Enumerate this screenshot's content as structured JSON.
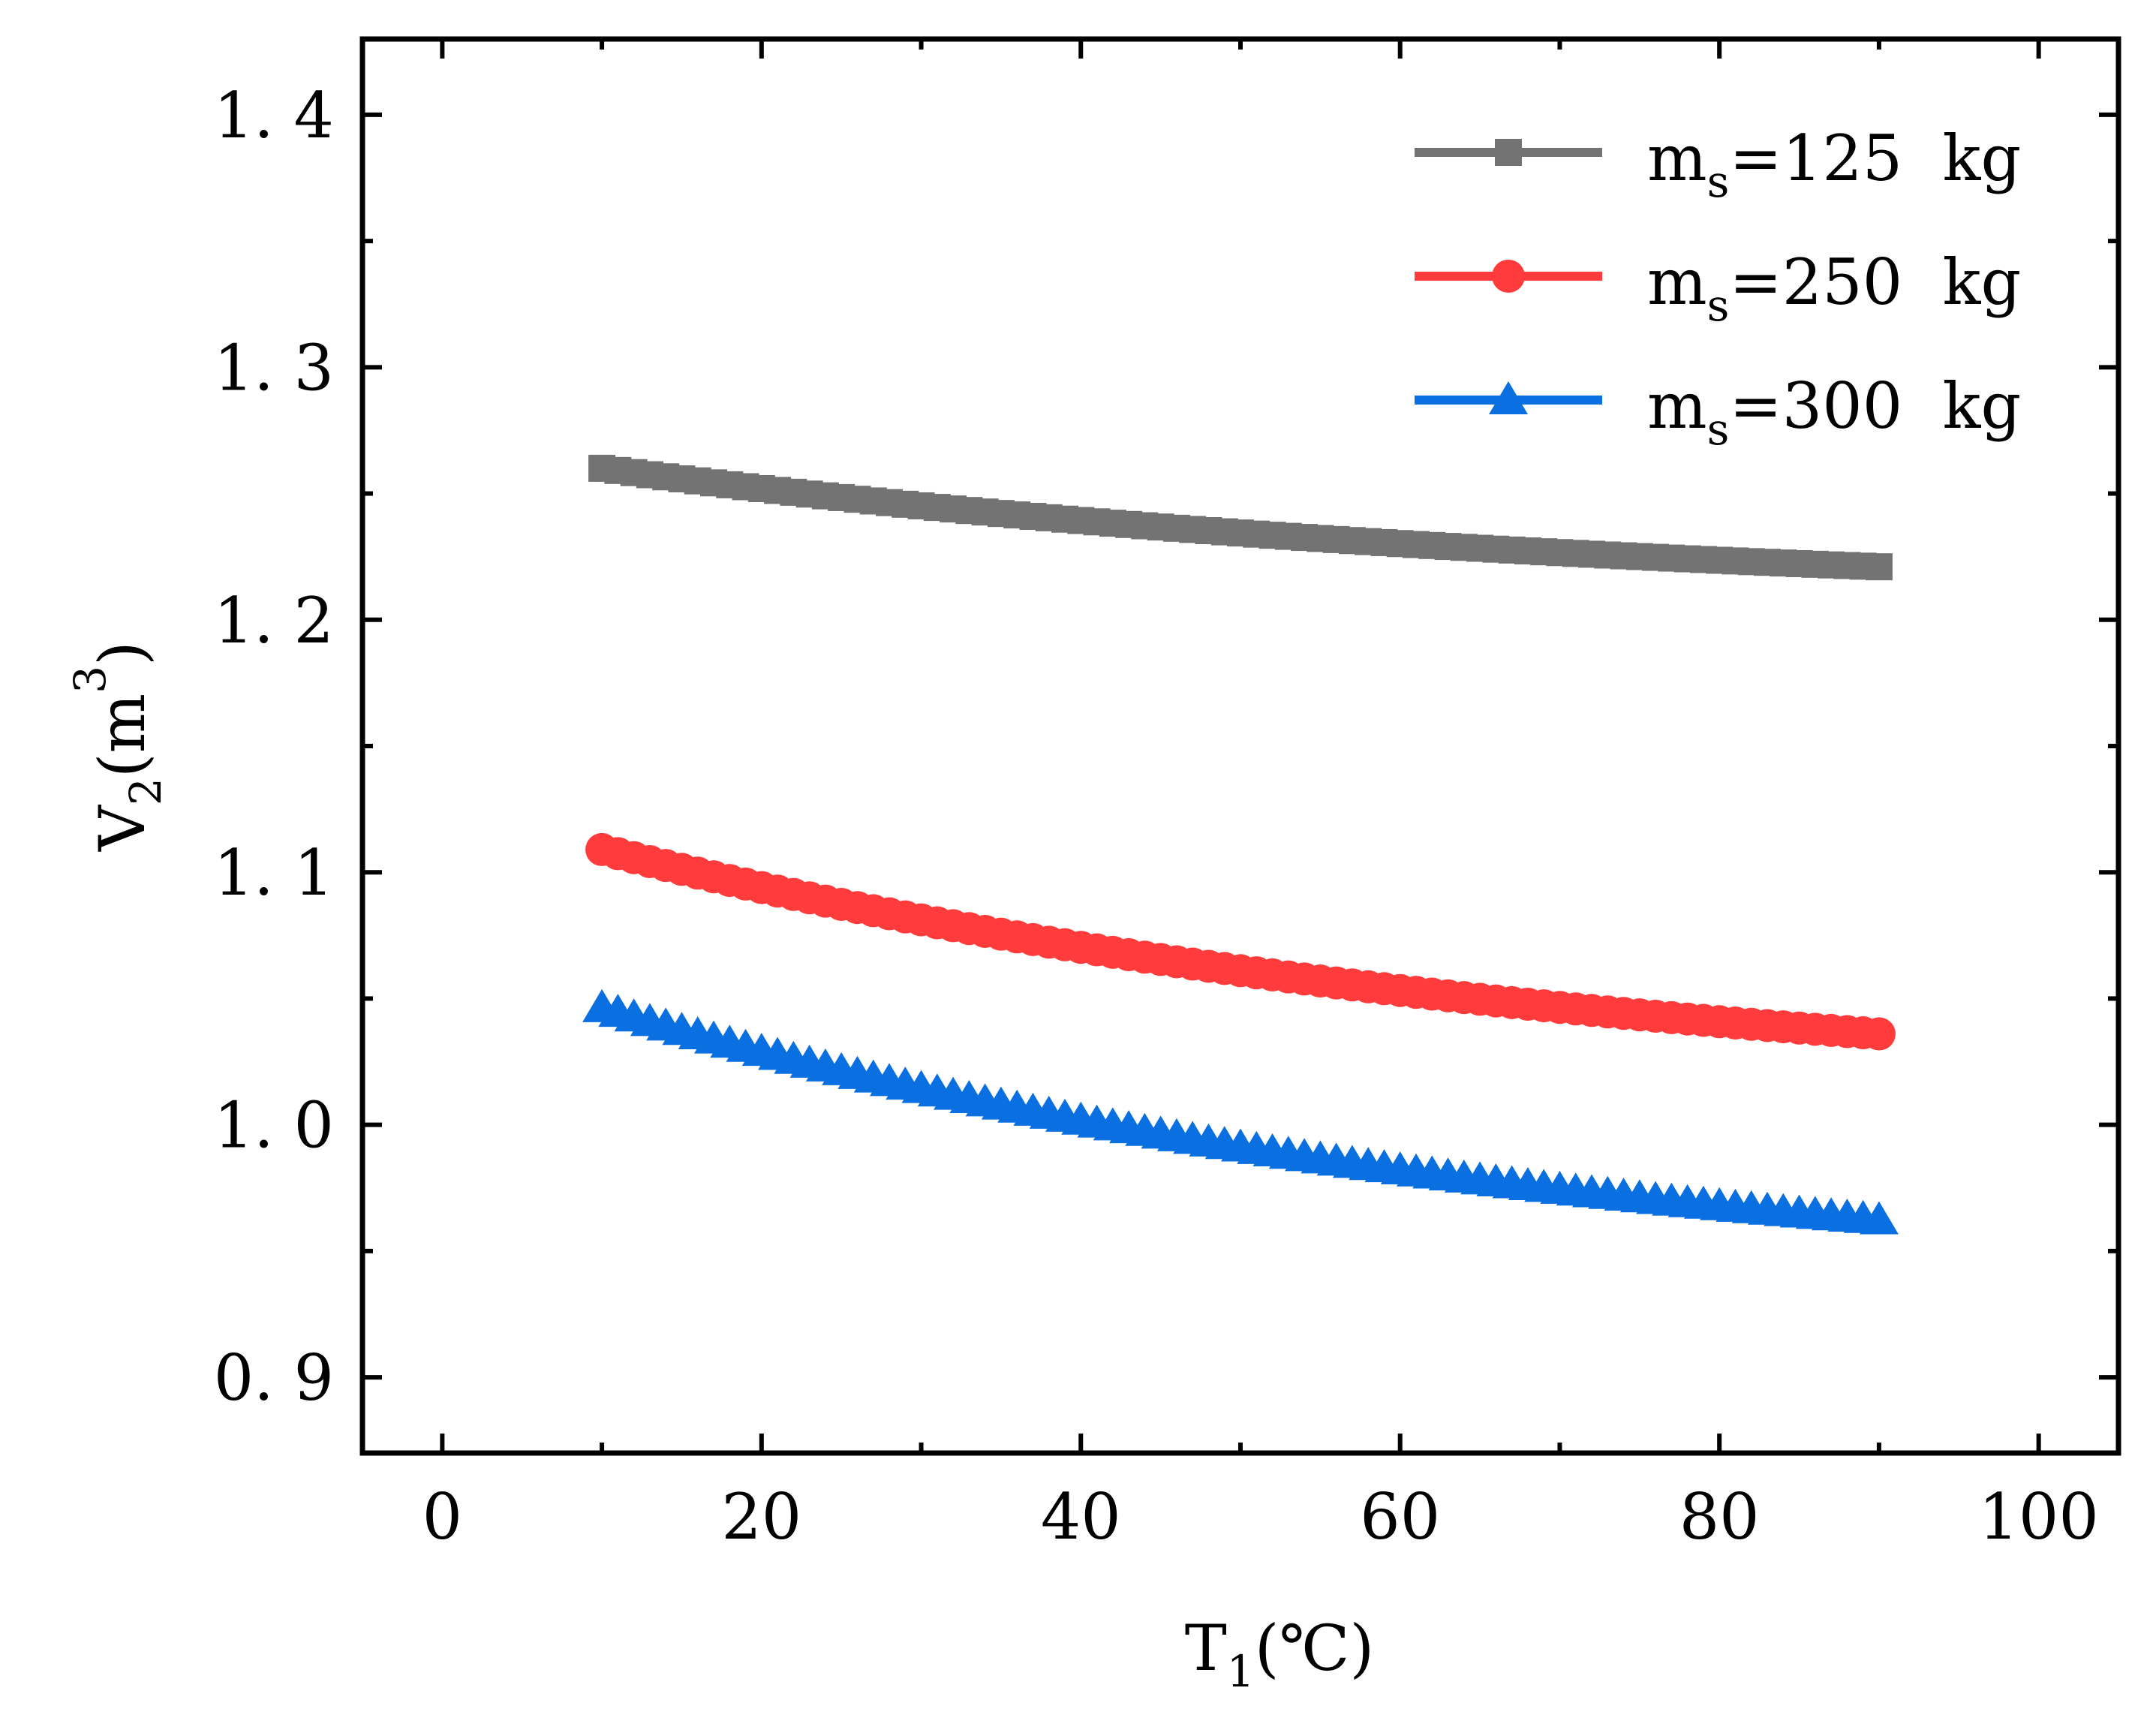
{
  "chart_data": {
    "type": "line",
    "title": "",
    "xlabel": {
      "main": "T",
      "sub": "1",
      "suffix": "(℃)"
    },
    "ylabel": {
      "main": "V",
      "sub": "2",
      "unit_open": "(m",
      "sup": "3",
      "unit_close": ")"
    },
    "xlim": [
      -5,
      105
    ],
    "ylim": [
      0.87,
      1.43
    ],
    "xticks": [
      0,
      20,
      40,
      60,
      80,
      100
    ],
    "xtick_labels": [
      "0",
      "20",
      "40",
      "60",
      "80",
      "100"
    ],
    "xminor": [
      10,
      30,
      50,
      70,
      90
    ],
    "yticks": [
      0.9,
      1.0,
      1.1,
      1.2,
      1.3,
      1.4
    ],
    "ytick_labels": [
      "0. 9",
      "1. 0",
      "1. 1",
      "1. 2",
      "1. 3",
      "1. 4"
    ],
    "yminor": [
      0.95,
      1.05,
      1.15,
      1.25,
      1.35
    ],
    "legend_position": "top-right",
    "series": [
      {
        "name": "ms=125 kg",
        "label_main": "m",
        "label_sub": "s",
        "label_rest": "=125  kg",
        "color": "#737373",
        "marker": "square",
        "x_start": 10,
        "x_end": 90,
        "n_points": 81,
        "y_start": 1.26,
        "y_end": 1.221
      },
      {
        "name": "ms=250 kg",
        "label_main": "m",
        "label_sub": "s",
        "label_rest": "=250  kg",
        "color": "#ff3b3b",
        "marker": "circle",
        "x_start": 10,
        "x_end": 90,
        "n_points": 81,
        "y_start": 1.109,
        "y_end": 1.036
      },
      {
        "name": "ms=300 kg",
        "label_main": "m",
        "label_sub": "s",
        "label_rest": "=300  kg",
        "color": "#0a6fe0",
        "marker": "triangle",
        "x_start": 10,
        "x_end": 90,
        "n_points": 81,
        "y_start": 1.046,
        "y_end": 0.962
      }
    ]
  }
}
